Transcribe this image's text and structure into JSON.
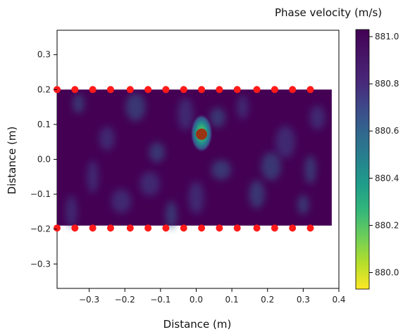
{
  "chart_data": {
    "type": "heatmap",
    "xlabel": "Distance (m)",
    "ylabel": "Distance (m)",
    "colorbar_label": "Phase velocity (m/s)",
    "xlim": [
      -0.39,
      0.4
    ],
    "ylim": [
      -0.37,
      0.37
    ],
    "x_ticks": [
      -0.3,
      -0.2,
      -0.1,
      0.0,
      0.1,
      0.2,
      0.3,
      0.4
    ],
    "x_tick_labels": [
      "−0.3",
      "−0.2",
      "−0.1",
      "0.0",
      "0.1",
      "0.2",
      "0.3",
      "0.4"
    ],
    "y_ticks": [
      -0.3,
      -0.2,
      -0.1,
      0.0,
      0.1,
      0.2,
      0.3
    ],
    "y_tick_labels": [
      "−0.3",
      "−0.2",
      "−0.1",
      "0.0",
      "0.1",
      "0.2",
      "0.3"
    ],
    "colorbar_range": [
      879.93,
      881.03
    ],
    "colorbar_ticks": [
      880.0,
      880.2,
      880.4,
      880.6,
      880.8,
      881.0
    ],
    "colorbar_tick_labels": [
      "880.0",
      "880.2",
      "880.4",
      "880.6",
      "880.8",
      "881.0"
    ],
    "colormap": "viridis_r",
    "field": {
      "x_range": [
        -0.39,
        0.38
      ],
      "y_range": [
        -0.19,
        0.2
      ],
      "background_value": 881.0,
      "anomaly": {
        "x": 0.015,
        "y": 0.075,
        "min_value": 880.4
      }
    },
    "sensors": {
      "color": "#ff1a1a",
      "x": [
        -0.39,
        -0.34,
        -0.29,
        -0.24,
        -0.185,
        -0.135,
        -0.085,
        -0.035,
        0.015,
        0.065,
        0.115,
        0.17,
        0.22,
        0.27,
        0.32
      ],
      "top_y": 0.2,
      "bottom_y": -0.197
    },
    "source": {
      "x": 0.015,
      "y": 0.072,
      "color": "#9a3412"
    }
  }
}
